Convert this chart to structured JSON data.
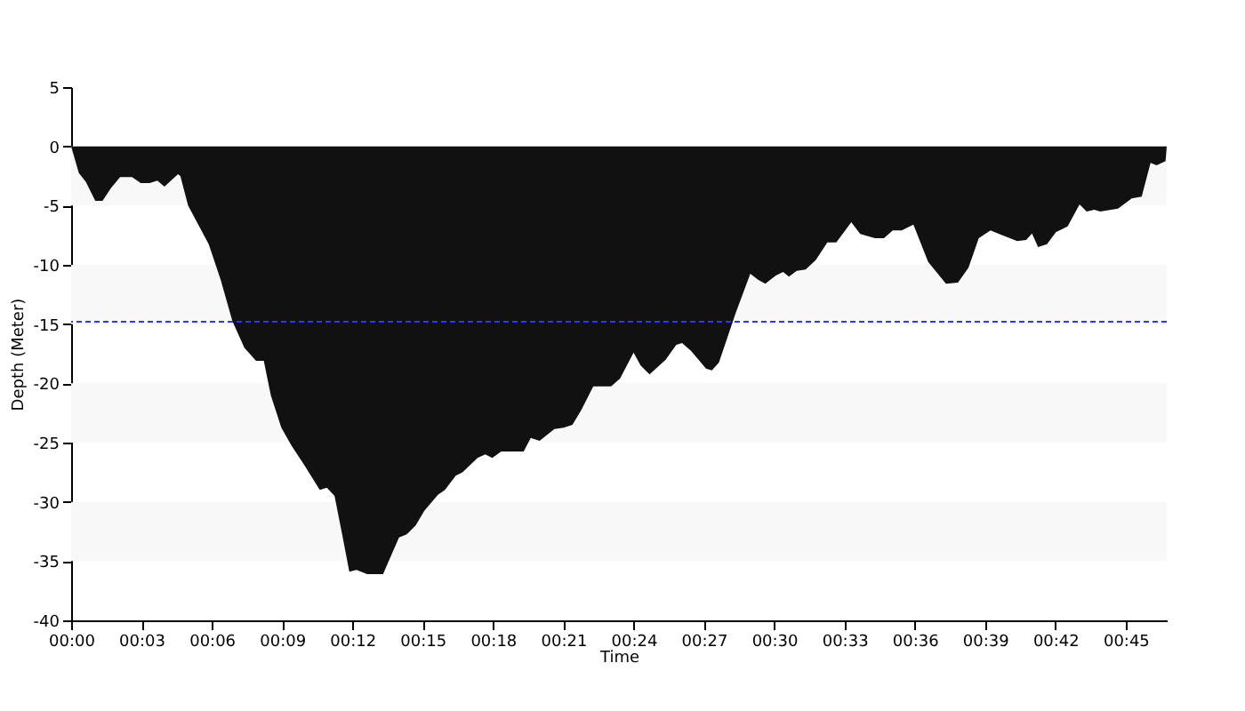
{
  "chart_data": {
    "type": "area",
    "xlabel": "Time",
    "ylabel": "Depth (Meter)",
    "color": "#111111",
    "grid": false,
    "x": [
      0,
      0.33,
      0.63,
      1.03,
      1.34,
      1.71,
      2.09,
      2.6,
      2.97,
      3.35,
      3.68,
      3.98,
      4.56,
      4.66,
      4.99,
      5.87,
      6.38,
      6.88,
      7.39,
      7.89,
      8.22,
      8.52,
      8.97,
      9.4,
      9.9,
      10.61,
      10.91,
      11.24,
      11.54,
      11.87,
      12.18,
      12.63,
      13.31,
      13.99,
      14.32,
      14.7,
      15.07,
      15.65,
      15.95,
      16.41,
      16.71,
      17.34,
      17.67,
      17.97,
      18.35,
      19.31,
      19.61,
      19.99,
      20.62,
      21.01,
      21.39,
      21.77,
      22.28,
      23.04,
      23.42,
      24,
      24.3,
      24.68,
      25.37,
      25.82,
      26.07,
      26.45,
      27.09,
      27.34,
      27.64,
      28.35,
      28.98,
      29.31,
      29.62,
      30.07,
      30.38,
      30.63,
      30.96,
      31.34,
      31.77,
      32.27,
      32.65,
      33.29,
      33.67,
      34.3,
      34.68,
      35.06,
      35.44,
      35.94,
      36.57,
      37.33,
      37.84,
      38.29,
      38.73,
      39.23,
      39.74,
      40.37,
      40.75,
      41,
      41.26,
      41.64,
      42.02,
      42.52,
      43.03,
      43.33,
      43.66,
      43.91,
      44.67,
      45.25,
      45.68,
      46.06,
      46.32,
      46.7,
      46.75
    ],
    "values": [
      0,
      -2.25,
      -3,
      -4.6,
      -4.6,
      -3.5,
      -2.6,
      -2.6,
      -3.1,
      -3.1,
      -2.9,
      -3.4,
      -2.35,
      -2.5,
      -5,
      -8.25,
      -11.25,
      -14.75,
      -17,
      -18.1,
      -18.1,
      -21,
      -23.75,
      -25.25,
      -26.75,
      -29,
      -28.8,
      -29.5,
      -32.5,
      -35.9,
      -35.75,
      -36.1,
      -36.1,
      -33,
      -32.75,
      -32,
      -30.75,
      -29.4,
      -29,
      -27.8,
      -27.5,
      -26.3,
      -26,
      -26.3,
      -25.75,
      -25.75,
      -24.6,
      -24.85,
      -23.85,
      -23.75,
      -23.5,
      -22.25,
      -20.25,
      -20.25,
      -19.6,
      -17.4,
      -18.5,
      -19.25,
      -18,
      -16.75,
      -16.6,
      -17.25,
      -18.75,
      -18.9,
      -18.25,
      -14.1,
      -10.75,
      -11.25,
      -11.6,
      -10.9,
      -10.6,
      -11,
      -10.5,
      -10.4,
      -9.6,
      -8.1,
      -8.1,
      -6.4,
      -7.4,
      -7.75,
      -7.75,
      -7.1,
      -7.1,
      -6.6,
      -9.75,
      -11.6,
      -11.5,
      -10.25,
      -7.75,
      -7.1,
      -7.5,
      -8,
      -7.9,
      -7.35,
      -8.5,
      -8.25,
      -7.25,
      -6.75,
      -4.9,
      -5.5,
      -5.35,
      -5.5,
      -5.25,
      -4.4,
      -4.25,
      -1.4,
      -1.6,
      -1.25,
      0
    ],
    "xlim": [
      0,
      46.75
    ],
    "xticks": [
      {
        "value": 0,
        "label": "00:00"
      },
      {
        "value": 3,
        "label": "00:03"
      },
      {
        "value": 6,
        "label": "00:06"
      },
      {
        "value": 9,
        "label": "00:09"
      },
      {
        "value": 12,
        "label": "00:12"
      },
      {
        "value": 15,
        "label": "00:15"
      },
      {
        "value": 18,
        "label": "00:18"
      },
      {
        "value": 21,
        "label": "00:21"
      },
      {
        "value": 24,
        "label": "00:24"
      },
      {
        "value": 27,
        "label": "00:27"
      },
      {
        "value": 30,
        "label": "00:30"
      },
      {
        "value": 33,
        "label": "00:33"
      },
      {
        "value": 36,
        "label": "00:36"
      },
      {
        "value": 39,
        "label": "00:39"
      },
      {
        "value": 42,
        "label": "00:42"
      },
      {
        "value": 45,
        "label": "00:45"
      }
    ],
    "ylim": [
      -40,
      5
    ],
    "yticks": [
      5,
      0,
      -5,
      -10,
      -15,
      -20,
      -25,
      -30,
      -35,
      -40
    ],
    "ref_lines": [
      {
        "axis": "y",
        "value": -14.8,
        "color": "#3333ff",
        "line_style": "dashed"
      }
    ],
    "bands": [
      {
        "axis": "y",
        "from": 0,
        "to": -5,
        "color": "#f8f8f8"
      },
      {
        "axis": "y",
        "from": -10,
        "to": -15,
        "color": "#f8f8f8"
      },
      {
        "axis": "y",
        "from": -20,
        "to": -25,
        "color": "#f8f8f8"
      },
      {
        "axis": "y",
        "from": -30,
        "to": -35,
        "color": "#f8f8f8"
      }
    ]
  }
}
